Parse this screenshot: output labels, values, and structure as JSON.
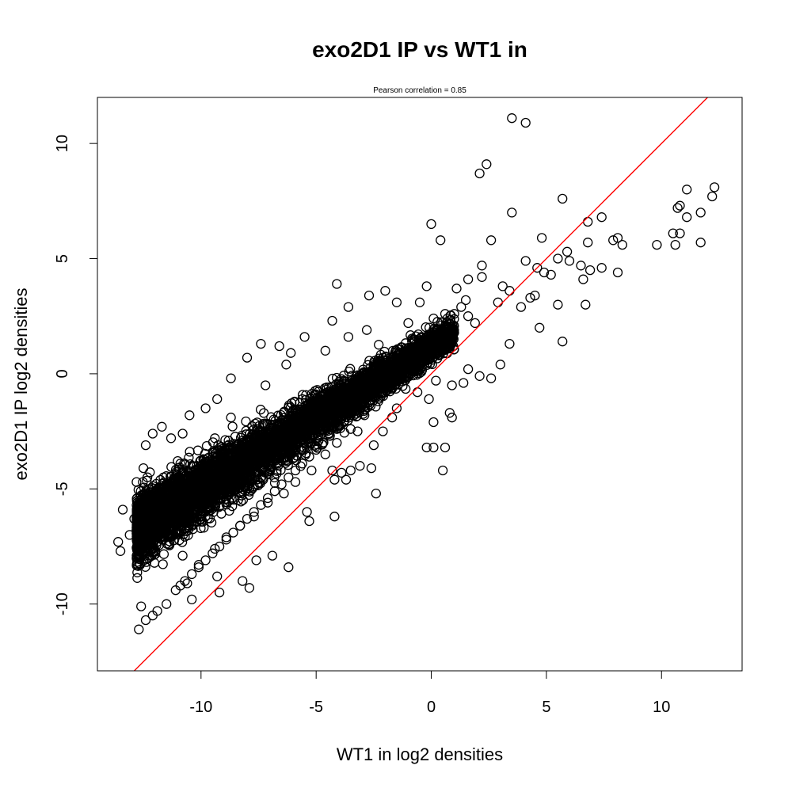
{
  "chart_data": {
    "type": "scatter",
    "title": "exo2D1 IP vs WT1 in",
    "subtitle": "Pearson correlation =  0.85",
    "xlabel": "WT1 in log2 densities",
    "ylabel": "exo2D1 IP log2 densities",
    "xlim": [
      -14.5,
      13.5
    ],
    "ylim": [
      -12.9,
      12.0
    ],
    "x_ticks": [
      -10,
      -5,
      0,
      5,
      10
    ],
    "y_ticks": [
      -10,
      -5,
      0,
      5,
      10
    ],
    "x_tick_labels": [
      "-10",
      "-5",
      "0",
      "5",
      "10"
    ],
    "y_tick_labels": [
      "-10",
      "-5",
      "0",
      "5",
      "10"
    ],
    "grid": false,
    "legend": "none",
    "point_color": "#000000",
    "line_color": "#ff0000",
    "reference_line": {
      "slope": 1,
      "intercept": 0
    },
    "series": [
      {
        "points": [
          [
            3.5,
            11.1
          ],
          [
            4.1,
            10.9
          ],
          [
            2.4,
            9.1
          ],
          [
            2.1,
            8.7
          ],
          [
            12.3,
            8.1
          ],
          [
            11.1,
            8.0
          ],
          [
            12.2,
            7.7
          ],
          [
            5.7,
            7.6
          ],
          [
            10.8,
            7.3
          ],
          [
            10.7,
            7.2
          ],
          [
            3.5,
            7.0
          ],
          [
            11.7,
            7.0
          ],
          [
            11.1,
            6.8
          ],
          [
            7.4,
            6.8
          ],
          [
            6.8,
            6.6
          ],
          [
            0.0,
            6.5
          ],
          [
            10.5,
            6.1
          ],
          [
            10.8,
            6.1
          ],
          [
            4.8,
            5.9
          ],
          [
            8.1,
            5.9
          ],
          [
            2.6,
            5.8
          ],
          [
            0.4,
            5.8
          ],
          [
            7.9,
            5.8
          ],
          [
            11.7,
            5.7
          ],
          [
            6.8,
            5.7
          ],
          [
            8.3,
            5.6
          ],
          [
            9.8,
            5.6
          ],
          [
            10.6,
            5.6
          ],
          [
            4.1,
            4.9
          ],
          [
            5.5,
            5.0
          ],
          [
            5.9,
            5.3
          ],
          [
            6.0,
            4.9
          ],
          [
            6.5,
            4.7
          ],
          [
            6.9,
            4.5
          ],
          [
            7.4,
            4.6
          ],
          [
            8.1,
            4.4
          ],
          [
            4.6,
            4.6
          ],
          [
            4.9,
            4.4
          ],
          [
            5.2,
            4.3
          ],
          [
            6.6,
            4.1
          ],
          [
            2.2,
            4.7
          ],
          [
            2.2,
            4.2
          ],
          [
            1.6,
            4.1
          ],
          [
            4.5,
            3.4
          ],
          [
            4.3,
            3.3
          ],
          [
            5.5,
            3.0
          ],
          [
            6.7,
            3.0
          ],
          [
            3.1,
            3.8
          ],
          [
            3.4,
            3.6
          ],
          [
            3.9,
            2.9
          ],
          [
            2.9,
            3.1
          ],
          [
            4.7,
            2.0
          ],
          [
            5.7,
            1.4
          ],
          [
            3.4,
            1.3
          ],
          [
            3.0,
            0.4
          ],
          [
            2.1,
            -0.1
          ],
          [
            2.6,
            -0.2
          ],
          [
            1.6,
            0.2
          ],
          [
            1.4,
            -0.4
          ],
          [
            0.9,
            -0.5
          ],
          [
            0.2,
            -0.3
          ],
          [
            -0.6,
            -0.8
          ],
          [
            -0.1,
            -1.1
          ],
          [
            0.8,
            -1.7
          ],
          [
            0.9,
            -1.9
          ],
          [
            0.1,
            -2.1
          ],
          [
            0.1,
            -3.2
          ],
          [
            0.6,
            -3.2
          ],
          [
            -0.2,
            -3.2
          ],
          [
            0.5,
            -4.2
          ],
          [
            -1.5,
            -1.5
          ],
          [
            -2.2,
            -1.0
          ],
          [
            -1.7,
            -1.9
          ],
          [
            -2.1,
            -2.5
          ],
          [
            -2.9,
            -1.4
          ],
          [
            -3.2,
            -2.5
          ],
          [
            -2.5,
            -3.1
          ],
          [
            -2.6,
            -4.1
          ],
          [
            -3.1,
            -4.0
          ],
          [
            -3.5,
            -4.2
          ],
          [
            -3.9,
            -4.3
          ],
          [
            -4.2,
            -4.6
          ],
          [
            -3.7,
            -4.6
          ],
          [
            -4.3,
            -4.2
          ],
          [
            -2.4,
            -5.2
          ],
          [
            -4.2,
            -6.2
          ],
          [
            -5.3,
            -6.4
          ],
          [
            -5.4,
            -6.0
          ],
          [
            -6.2,
            -8.4
          ],
          [
            -6.9,
            -7.9
          ],
          [
            -7.6,
            -8.1
          ],
          [
            -7.9,
            -9.3
          ],
          [
            -9.2,
            -9.5
          ],
          [
            -9.3,
            -8.8
          ],
          [
            -8.2,
            -9.0
          ],
          [
            -10.4,
            -9.8
          ],
          [
            -10.6,
            -9.1
          ],
          [
            -12.6,
            -10.1
          ],
          [
            -12.7,
            -11.1
          ],
          [
            -12.4,
            -10.7
          ],
          [
            -12.1,
            -10.5
          ],
          [
            -11.9,
            -10.3
          ],
          [
            -11.5,
            -10.0
          ],
          [
            -13.6,
            -7.3
          ],
          [
            -13.5,
            -7.7
          ],
          [
            -13.4,
            -5.9
          ],
          [
            -13.1,
            -7.0
          ],
          [
            -12.9,
            -6.3
          ],
          [
            -12.8,
            -4.7
          ],
          [
            -12.5,
            -4.1
          ],
          [
            -12.4,
            -3.1
          ],
          [
            -12.1,
            -2.6
          ],
          [
            -11.7,
            -2.3
          ],
          [
            -11.3,
            -2.8
          ],
          [
            -10.8,
            -2.6
          ],
          [
            -10.5,
            -1.8
          ],
          [
            -9.8,
            -1.5
          ],
          [
            -9.3,
            -1.1
          ],
          [
            -8.7,
            -0.2
          ],
          [
            -8.0,
            0.7
          ],
          [
            -7.4,
            1.3
          ],
          [
            -6.6,
            1.2
          ],
          [
            -6.1,
            0.9
          ],
          [
            -5.5,
            1.6
          ],
          [
            -4.3,
            2.3
          ],
          [
            -3.6,
            2.9
          ],
          [
            -2.0,
            3.6
          ],
          [
            -4.1,
            3.9
          ],
          [
            -2.7,
            3.4
          ],
          [
            -1.5,
            3.1
          ],
          [
            -0.2,
            3.8
          ],
          [
            -0.5,
            3.1
          ],
          [
            1.1,
            3.7
          ],
          [
            1.5,
            3.2
          ],
          [
            0.6,
            2.6
          ],
          [
            0.1,
            2.4
          ],
          [
            -1.0,
            2.2
          ],
          [
            -2.8,
            1.9
          ],
          [
            -3.6,
            1.6
          ],
          [
            -4.6,
            1.0
          ],
          [
            -6.3,
            0.4
          ],
          [
            -7.2,
            -0.5
          ],
          [
            -8.7,
            -1.9
          ],
          [
            -9.4,
            -2.8
          ],
          [
            -10.9,
            -3.9
          ],
          [
            -11.6,
            -4.9
          ],
          [
            -12.2,
            -5.6
          ],
          [
            -11.9,
            -6.8
          ],
          [
            -11.4,
            -7.4
          ],
          [
            -10.8,
            -7.9
          ],
          [
            -10.1,
            -8.3
          ],
          [
            -9.4,
            -7.6
          ],
          [
            -8.9,
            -7.1
          ],
          [
            -8.3,
            -6.6
          ],
          [
            -7.7,
            -6.2
          ],
          [
            -7.1,
            -5.6
          ],
          [
            -6.4,
            -5.2
          ],
          [
            -5.9,
            -4.7
          ],
          [
            -5.2,
            -4.2
          ],
          [
            -4.6,
            -3.5
          ],
          [
            -4.1,
            -3.0
          ],
          [
            -3.5,
            -2.4
          ],
          [
            -2.9,
            -1.8
          ],
          [
            -2.3,
            -1.2
          ],
          [
            -1.7,
            -0.6
          ],
          [
            -1.1,
            -0.1
          ],
          [
            -0.5,
            0.5
          ],
          [
            0.1,
            1.0
          ],
          [
            -11.1,
            -9.4
          ],
          [
            -10.9,
            -9.2
          ],
          [
            -10.7,
            -9.0
          ],
          [
            -10.4,
            -8.7
          ],
          [
            -10.1,
            -8.4
          ],
          [
            -9.8,
            -8.1
          ],
          [
            -9.5,
            -7.8
          ],
          [
            -9.2,
            -7.5
          ],
          [
            -8.9,
            -7.2
          ],
          [
            -8.6,
            -6.9
          ],
          [
            -8.3,
            -6.6
          ],
          [
            -8.0,
            -6.3
          ],
          [
            -7.7,
            -6.0
          ],
          [
            -7.4,
            -5.7
          ],
          [
            -7.1,
            -5.4
          ],
          [
            -6.8,
            -5.1
          ],
          [
            -6.5,
            -4.8
          ],
          [
            -6.2,
            -4.5
          ],
          [
            -5.9,
            -4.2
          ],
          [
            -5.6,
            -3.9
          ],
          [
            -5.3,
            -3.6
          ],
          [
            -5.0,
            -3.3
          ],
          [
            -4.7,
            -3.0
          ],
          [
            -4.4,
            -2.7
          ],
          [
            -4.1,
            -2.4
          ],
          [
            -3.8,
            -2.1
          ],
          [
            -3.5,
            -1.8
          ],
          [
            -3.2,
            -1.5
          ],
          [
            -2.9,
            -1.2
          ],
          [
            -2.6,
            -0.9
          ],
          [
            -2.3,
            -0.6
          ],
          [
            -2.0,
            -0.3
          ],
          [
            -1.7,
            0.0
          ],
          [
            -1.4,
            0.3
          ],
          [
            -1.1,
            0.6
          ],
          [
            -0.8,
            0.9
          ],
          [
            -0.5,
            1.2
          ],
          [
            -0.2,
            1.5
          ],
          [
            0.1,
            1.8
          ],
          [
            0.4,
            2.1
          ],
          [
            0.7,
            2.4
          ],
          [
            1.0,
            2.6
          ],
          [
            1.3,
            2.9
          ],
          [
            1.6,
            2.5
          ],
          [
            1.9,
            2.2
          ]
        ],
        "dense_region": {
          "description_free": true,
          "x_range": [
            -12.8,
            1.0
          ],
          "trend": {
            "slope": 0.62,
            "intercept": 1.2
          },
          "spread": 1.2,
          "count": 5200
        }
      }
    ]
  }
}
